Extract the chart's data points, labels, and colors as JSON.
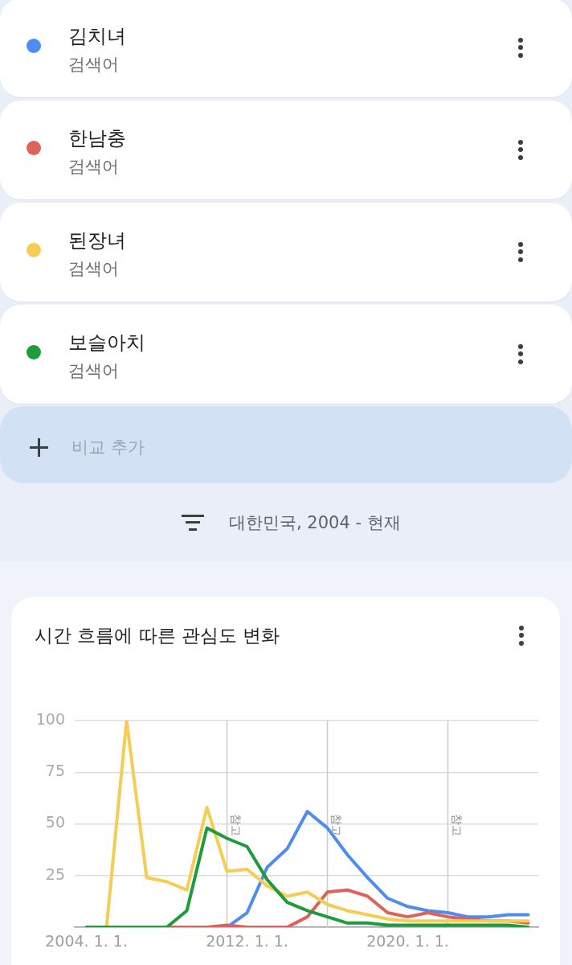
{
  "chart_data": {
    "type": "line",
    "title": "시간 흐름에 따른 관심도 변화",
    "subtitle": "대한민국, 2004 - 현재",
    "annotations": [
      "검색어",
      "검색어",
      "검색어",
      "검색어",
      "비교 추가"
    ],
    "x": [
      "2004",
      "2005",
      "2006",
      "2007",
      "2008",
      "2009",
      "2010",
      "2011",
      "2012",
      "2013",
      "2014",
      "2015",
      "2016",
      "2017",
      "2018",
      "2019",
      "2020",
      "2021",
      "2022",
      "2023",
      "2024",
      "2025",
      "2026"
    ],
    "series": [
      {
        "name": "김치녀",
        "color": "#4e8cf0",
        "values": [
          null,
          null,
          null,
          null,
          null,
          null,
          null,
          0,
          7,
          29,
          38,
          56,
          48,
          35,
          24,
          14,
          10,
          8,
          7,
          5,
          5,
          6,
          6
        ]
      },
      {
        "name": "한남충",
        "color": "#dd6259",
        "values": [
          null,
          null,
          null,
          null,
          0,
          0,
          0,
          1,
          0,
          0,
          0,
          5,
          17,
          18,
          15,
          7,
          5,
          7,
          5,
          4,
          3,
          3,
          2
        ]
      },
      {
        "name": "된장녀",
        "color": "#f5cd54",
        "values": [
          null,
          0,
          100,
          24,
          22,
          18,
          58,
          27,
          28,
          20,
          15,
          17,
          11,
          8,
          6,
          4,
          3,
          3,
          3,
          3,
          3,
          3,
          3
        ]
      },
      {
        "name": "보슬아치",
        "color": "#1e9b3b",
        "values": [
          0,
          0,
          0,
          0,
          0,
          8,
          48,
          43,
          39,
          23,
          12,
          8,
          5,
          2,
          2,
          1,
          1,
          1,
          1,
          1,
          1,
          1,
          0
        ]
      }
    ],
    "xlim": [
      "2003-06",
      "2026-07"
    ],
    "xticks": [
      {
        "value": "2004-01-01",
        "label": "2004. 1. 1."
      },
      {
        "value": "2012-01-01",
        "label": "2012. 1. 1."
      },
      {
        "value": "2020-01-01",
        "label": "2020. 1. 1."
      }
    ],
    "ylim": [
      0,
      100
    ],
    "yticks": [
      {
        "value": 0,
        "label": null
      },
      25,
      50,
      75,
      100
    ],
    "ref_lines": [
      {
        "axis": "x",
        "value": "2011-01-01",
        "label": "참고",
        "color": "#cccccc"
      },
      {
        "axis": "x",
        "value": "2016-01-01",
        "label": "참고",
        "color": "#cccccc"
      },
      {
        "axis": "x",
        "value": "2022-01-01",
        "label": "참고",
        "color": "#cccccc"
      }
    ],
    "grid": "y",
    "legend": "top",
    "marker": "none",
    "line_style": "solid"
  }
}
